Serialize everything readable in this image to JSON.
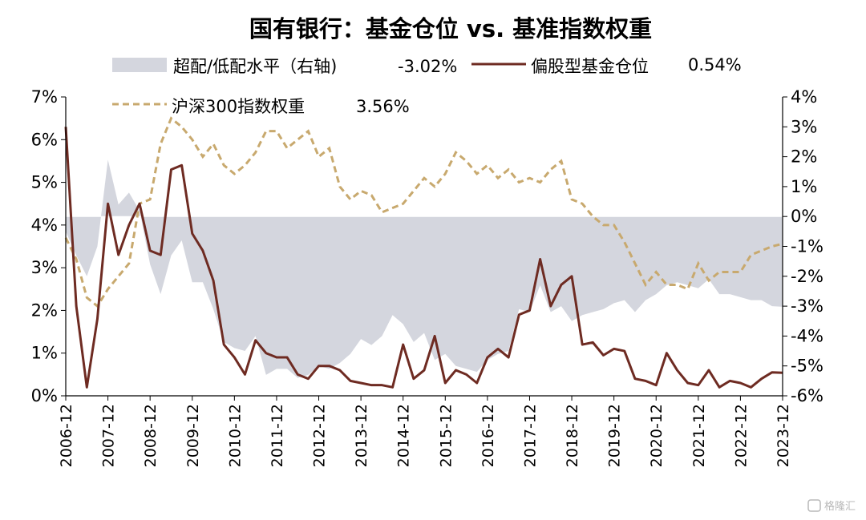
{
  "chart_data": {
    "type": "line",
    "title": "国有银行：基金仓位 vs. 基准指数权重",
    "legend": [
      {
        "label": "超配/低配水平（右轴)",
        "value_label": "-3.02%",
        "style": "area",
        "axis": "right"
      },
      {
        "label": "偏股型基金仓位",
        "value_label": "0.54%",
        "style": "solid",
        "axis": "left"
      },
      {
        "label": "沪深300指数权重",
        "value_label": "3.56%",
        "style": "dashed",
        "axis": "left"
      }
    ],
    "x_tick_labels": [
      "2006-12",
      "2007-12",
      "2008-12",
      "2009-12",
      "2010-12",
      "2011-12",
      "2012-12",
      "2013-12",
      "2014-12",
      "2015-12",
      "2016-12",
      "2017-12",
      "2018-12",
      "2019-12",
      "2020-12",
      "2021-12",
      "2022-12",
      "2023-12"
    ],
    "x_start": 2006.917,
    "x_step_years": 0.25,
    "y_left": {
      "range": [
        0,
        7
      ],
      "unit": "%",
      "ticks": [
        "0%",
        "1%",
        "2%",
        "3%",
        "4%",
        "5%",
        "6%",
        "7%"
      ]
    },
    "y_right": {
      "range": [
        -6,
        4
      ],
      "unit": "%",
      "ticks": [
        "-6%",
        "-5%",
        "-4%",
        "-3%",
        "-2%",
        "-1%",
        "0%",
        "1%",
        "2%",
        "3%",
        "4%"
      ]
    },
    "series": [
      {
        "name": "偏股型基金仓位",
        "axis": "left",
        "values": [
          6.3,
          2.1,
          0.2,
          1.8,
          4.5,
          3.3,
          4.0,
          4.5,
          3.4,
          3.3,
          5.3,
          5.4,
          3.8,
          3.4,
          2.7,
          1.2,
          0.9,
          0.5,
          1.3,
          1.0,
          0.9,
          0.9,
          0.5,
          0.4,
          0.7,
          0.7,
          0.6,
          0.35,
          0.3,
          0.25,
          0.25,
          0.2,
          1.2,
          0.4,
          0.6,
          1.4,
          0.3,
          0.6,
          0.5,
          0.3,
          0.9,
          1.1,
          0.9,
          1.9,
          2.0,
          3.2,
          2.1,
          2.6,
          2.8,
          1.2,
          1.25,
          0.95,
          1.1,
          1.05,
          0.4,
          0.35,
          0.25,
          1.0,
          0.6,
          0.3,
          0.25,
          0.6,
          0.2,
          0.35,
          0.3,
          0.2,
          0.4,
          0.55,
          0.54
        ]
      },
      {
        "name": "沪深300指数权重",
        "axis": "left",
        "values": [
          3.7,
          3.2,
          2.3,
          2.1,
          2.5,
          2.8,
          3.1,
          4.5,
          4.6,
          5.9,
          6.5,
          6.3,
          6.0,
          5.6,
          5.9,
          5.4,
          5.2,
          5.4,
          5.7,
          6.2,
          6.2,
          5.8,
          6.0,
          6.2,
          5.6,
          5.8,
          4.9,
          4.6,
          4.8,
          4.7,
          4.3,
          4.4,
          4.5,
          4.8,
          5.1,
          4.9,
          5.2,
          5.7,
          5.5,
          5.2,
          5.4,
          5.1,
          5.3,
          5.0,
          5.1,
          5.0,
          5.3,
          5.5,
          4.6,
          4.5,
          4.2,
          4.0,
          4.0,
          3.6,
          3.1,
          2.6,
          2.9,
          2.6,
          2.6,
          2.5,
          3.1,
          2.7,
          2.9,
          2.9,
          2.9,
          3.3,
          3.4,
          3.5,
          3.56
        ]
      },
      {
        "name": "超配/低配水平（右轴)",
        "axis": "right",
        "values": [
          -0.5,
          -1.3,
          -2.0,
          -1.0,
          1.9,
          0.4,
          0.8,
          0.2,
          -1.6,
          -2.6,
          -1.3,
          -0.8,
          -2.2,
          -2.2,
          -3.1,
          -4.2,
          -4.4,
          -4.5,
          -4.0,
          -5.3,
          -5.1,
          -5.1,
          -5.4,
          -5.3,
          -5.0,
          -5.1,
          -4.9,
          -4.6,
          -4.1,
          -4.3,
          -4.0,
          -3.3,
          -3.6,
          -4.2,
          -3.9,
          -4.8,
          -4.6,
          -5.0,
          -5.1,
          -5.2,
          -4.8,
          -4.6,
          -4.5,
          -3.1,
          -3.2,
          -2.3,
          -3.2,
          -3.0,
          -3.5,
          -3.3,
          -3.2,
          -3.1,
          -2.9,
          -2.8,
          -3.2,
          -2.8,
          -2.6,
          -2.3,
          -2.2,
          -2.3,
          -2.4,
          -2.1,
          -2.6,
          -2.6,
          -2.7,
          -2.8,
          -2.8,
          -3.0,
          -3.02
        ]
      }
    ],
    "colors": {
      "fund": "#6e2b22",
      "index": "#c8a96e",
      "area": "#d4d6de"
    },
    "watermark": "格隆汇"
  }
}
